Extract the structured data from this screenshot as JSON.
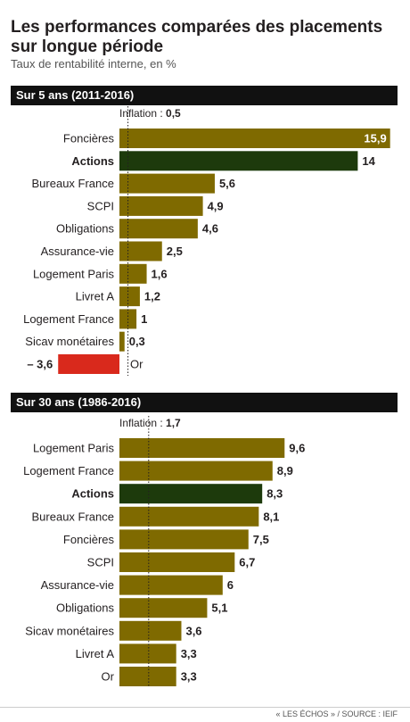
{
  "header": {
    "title": "Les performances comparées des placements sur longue période",
    "subtitle": "Taux de rentabilité interne, en %"
  },
  "footer": {
    "source": "« LES ÉCHOS » / SOURCE : IEIF"
  },
  "colors": {
    "bar": "#7f6a00",
    "highlight": "#1d3a0c",
    "negative": "#d9291c",
    "band": "#111111"
  },
  "chart_data": [
    {
      "type": "bar",
      "title": "Sur 5 ans (2011-2016)",
      "orientation": "horizontal",
      "inflation": {
        "label": "Inflation : ",
        "value": 0.5,
        "value_label": "0,5"
      },
      "highlight": "Actions",
      "categories": [
        "Foncières",
        "Actions",
        "Bureaux France",
        "SCPI",
        "Obligations",
        "Assurance-vie",
        "Logement Paris",
        "Livret A",
        "Logement France",
        "Sicav monétaires",
        "Or"
      ],
      "values": [
        15.9,
        14,
        5.6,
        4.9,
        4.6,
        2.5,
        1.6,
        1.2,
        1,
        0.3,
        -3.6
      ],
      "value_labels": [
        "15,9",
        "14",
        "5,6",
        "4,9",
        "4,6",
        "2,5",
        "1,6",
        "1,2",
        "1",
        "0,3",
        "– 3,6"
      ]
    },
    {
      "type": "bar",
      "title": "Sur 30 ans (1986-2016)",
      "orientation": "horizontal",
      "inflation": {
        "label": "Inflation : ",
        "value": 1.7,
        "value_label": "1,7"
      },
      "highlight": "Actions",
      "categories": [
        "Logement Paris",
        "Logement France",
        "Actions",
        "Bureaux France",
        "Foncières",
        "SCPI",
        "Assurance-vie",
        "Obligations",
        "Sicav monétaires",
        "Livret A",
        "Or"
      ],
      "values": [
        9.6,
        8.9,
        8.3,
        8.1,
        7.5,
        6.7,
        6,
        5.1,
        3.6,
        3.3,
        3.3
      ],
      "value_labels": [
        "9,6",
        "8,9",
        "8,3",
        "8,1",
        "7,5",
        "6,7",
        "6",
        "5,1",
        "3,6",
        "3,3",
        "3,3"
      ]
    }
  ]
}
